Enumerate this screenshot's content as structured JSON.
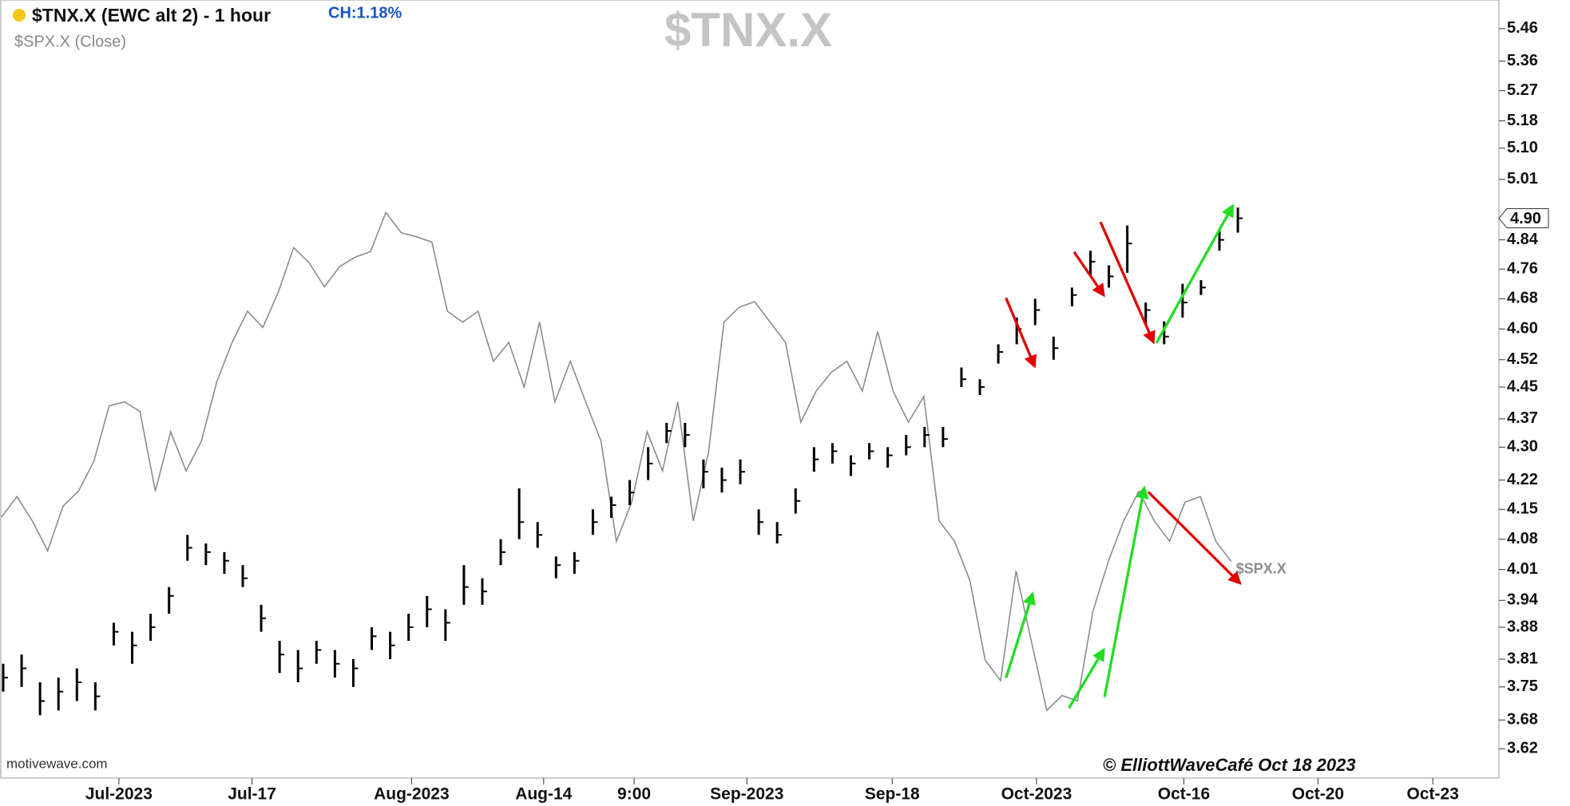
{
  "chart_data": {
    "type": "ohlc_overlay",
    "title": "$TNX.X (EWC alt 2) - 1 hour",
    "change": "CH:1.18%",
    "watermark": "$TNX.X",
    "overlay_label": "$SPX.X",
    "source": "motivewave.com",
    "credit": "© ElliottWaveCafé Oct 18 2023",
    "log_scale": true,
    "ylim": [
      3.56,
      5.55
    ],
    "yticks": [
      3.62,
      3.68,
      3.75,
      3.81,
      3.88,
      3.94,
      4.01,
      4.08,
      4.15,
      4.22,
      {
        "value": 4.3,
        "label": "4.30"
      },
      4.37,
      4.45,
      4.52,
      {
        "value": 4.6,
        "label": "4.60"
      },
      4.68,
      4.76,
      4.84,
      5.01,
      {
        "value": 5.1,
        "label": "5.10"
      },
      5.18,
      5.27,
      5.36,
      5.46
    ],
    "price_marker": {
      "value": 4.9,
      "label": "4.90"
    },
    "y2lim": [
      4170,
      4745
    ],
    "x_labels": [
      "Jul-2023",
      "Jul-17",
      "Aug-2023",
      "Aug-14",
      "9:00",
      "Sep-2023",
      "Sep-18",
      "Oct-2023",
      "Oct-16",
      "Oct-20",
      "Oct-23"
    ],
    "series": [
      {
        "name": "$TNX.X",
        "color": "#000000",
        "values": [
          3.77,
          3.79,
          3.72,
          3.74,
          3.76,
          3.73,
          3.87,
          3.84,
          3.88,
          3.95,
          4.06,
          4.05,
          4.03,
          3.99,
          3.9,
          3.82,
          3.79,
          3.83,
          3.8,
          3.79,
          3.86,
          3.84,
          3.88,
          3.92,
          3.89,
          3.97,
          3.96,
          4.05,
          4.12,
          4.09,
          4.02,
          4.03,
          4.12,
          4.16,
          4.19,
          4.26,
          4.34,
          4.33,
          4.24,
          4.22,
          4.24,
          4.12,
          4.09,
          4.17,
          4.27,
          4.29,
          4.26,
          4.29,
          4.28,
          4.3,
          4.33,
          4.32,
          4.47,
          4.45,
          4.54,
          4.6,
          4.65,
          4.55,
          4.69,
          4.78,
          4.74,
          4.83,
          4.65,
          4.58,
          4.67,
          4.71,
          4.84,
          4.9
        ],
        "low": [
          3.74,
          3.75,
          3.69,
          3.7,
          3.72,
          3.7,
          3.84,
          3.8,
          3.85,
          3.91,
          4.03,
          4.02,
          4.0,
          3.97,
          3.87,
          3.78,
          3.76,
          3.8,
          3.77,
          3.75,
          3.83,
          3.81,
          3.85,
          3.88,
          3.85,
          3.93,
          3.93,
          4.02,
          4.08,
          4.06,
          3.99,
          4.0,
          4.09,
          4.13,
          4.16,
          4.22,
          4.31,
          4.3,
          4.2,
          4.19,
          4.21,
          4.09,
          4.07,
          4.14,
          4.24,
          4.26,
          4.23,
          4.27,
          4.25,
          4.28,
          4.3,
          4.3,
          4.45,
          4.43,
          4.51,
          4.56,
          4.61,
          4.52,
          4.66,
          4.74,
          4.71,
          4.75,
          4.61,
          4.56,
          4.63,
          4.69,
          4.81,
          4.86
        ],
        "high": [
          3.8,
          3.82,
          3.76,
          3.77,
          3.79,
          3.76,
          3.89,
          3.87,
          3.91,
          3.97,
          4.09,
          4.07,
          4.05,
          4.02,
          3.93,
          3.85,
          3.83,
          3.85,
          3.83,
          3.81,
          3.88,
          3.87,
          3.91,
          3.95,
          3.92,
          4.02,
          3.99,
          4.08,
          4.2,
          4.12,
          4.04,
          4.05,
          4.15,
          4.18,
          4.22,
          4.3,
          4.36,
          4.36,
          4.27,
          4.25,
          4.27,
          4.15,
          4.12,
          4.2,
          4.3,
          4.31,
          4.28,
          4.31,
          4.3,
          4.33,
          4.35,
          4.35,
          4.5,
          4.47,
          4.56,
          4.63,
          4.68,
          4.58,
          4.71,
          4.81,
          4.77,
          4.88,
          4.67,
          4.62,
          4.72,
          4.73,
          4.87,
          4.93
        ]
      },
      {
        "name": "$SPX.X (Close)",
        "color": "#8c8c8c",
        "axis": "y2",
        "values": [
          4363,
          4378,
          4360,
          4338,
          4371,
          4382,
          4404,
          4445,
          4448,
          4441,
          4382,
          4426,
          4397,
          4419,
          4463,
          4492,
          4515,
          4503,
          4529,
          4562,
          4551,
          4533,
          4548,
          4555,
          4559,
          4588,
          4573,
          4570,
          4566,
          4515,
          4507,
          4515,
          4478,
          4492,
          4459,
          4507,
          4448,
          4478,
          4448,
          4419,
          4345,
          4374,
          4426,
          4397,
          4448,
          4360,
          4411,
          4507,
          4518,
          4522,
          4507,
          4492,
          4433,
          4456,
          4470,
          4478,
          4456,
          4500,
          4456,
          4433,
          4452,
          4360,
          4345,
          4316,
          4257,
          4242,
          4323,
          4271,
          4220,
          4231,
          4227,
          4293,
          4330,
          4360,
          4382,
          4360,
          4345,
          4374,
          4378,
          4345,
          4330
        ]
      }
    ]
  }
}
